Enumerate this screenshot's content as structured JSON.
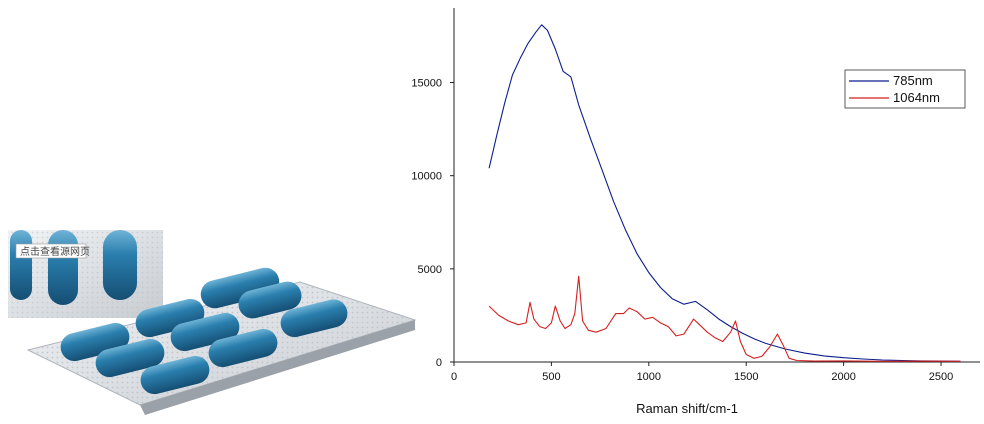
{
  "photo": {
    "inset_caption": "点击查看源网页",
    "capsule_color": "#1f6f9c"
  },
  "chart_data": {
    "type": "line",
    "title": "",
    "xlabel": "Raman shift/cm-1",
    "ylabel": "",
    "xlim": [
      0,
      2700
    ],
    "ylim": [
      0,
      19000
    ],
    "x_ticks": [
      "0",
      "500",
      "1000",
      "1500",
      "2000",
      "2500"
    ],
    "y_ticks": [
      "0",
      "5000",
      "10000",
      "15000"
    ],
    "legend_placement": "top-right",
    "grid": false,
    "series": [
      {
        "name": "785nm",
        "color": "#0b1f8c",
        "x": [
          180,
          220,
          260,
          300,
          340,
          380,
          420,
          450,
          480,
          520,
          560,
          600,
          640,
          700,
          760,
          820,
          880,
          940,
          1000,
          1060,
          1120,
          1180,
          1240,
          1300,
          1360,
          1420,
          1480,
          1540,
          1600,
          1700,
          1800,
          1900,
          2000,
          2100,
          2200,
          2300,
          2400,
          2500,
          2600
        ],
        "y": [
          10400,
          12200,
          13900,
          15400,
          16300,
          17100,
          17700,
          18100,
          17800,
          16800,
          15600,
          15300,
          13800,
          12000,
          10300,
          8600,
          7100,
          5800,
          4800,
          4000,
          3400,
          3100,
          3250,
          2800,
          2300,
          1900,
          1550,
          1250,
          1000,
          700,
          480,
          330,
          230,
          160,
          110,
          80,
          60,
          50,
          40
        ]
      },
      {
        "name": "1064nm",
        "color": "#d42020",
        "x": [
          180,
          230,
          280,
          330,
          370,
          390,
          410,
          440,
          470,
          500,
          520,
          545,
          570,
          600,
          620,
          640,
          660,
          690,
          730,
          780,
          830,
          870,
          900,
          940,
          980,
          1020,
          1060,
          1100,
          1140,
          1180,
          1230,
          1260,
          1300,
          1340,
          1380,
          1420,
          1445,
          1470,
          1500,
          1540,
          1580,
          1620,
          1660,
          1690,
          1720,
          1760,
          1850,
          2000,
          2200,
          2400,
          2600
        ],
        "y": [
          3000,
          2500,
          2200,
          2000,
          2100,
          3200,
          2300,
          1900,
          1800,
          2100,
          3000,
          2200,
          1800,
          2000,
          2600,
          4600,
          2200,
          1700,
          1600,
          1800,
          2600,
          2600,
          2900,
          2700,
          2300,
          2400,
          2100,
          1900,
          1400,
          1500,
          2300,
          2000,
          1600,
          1300,
          1100,
          1600,
          2200,
          1100,
          400,
          200,
          300,
          800,
          1500,
          900,
          200,
          80,
          50,
          60,
          40,
          50,
          40
        ]
      }
    ]
  }
}
